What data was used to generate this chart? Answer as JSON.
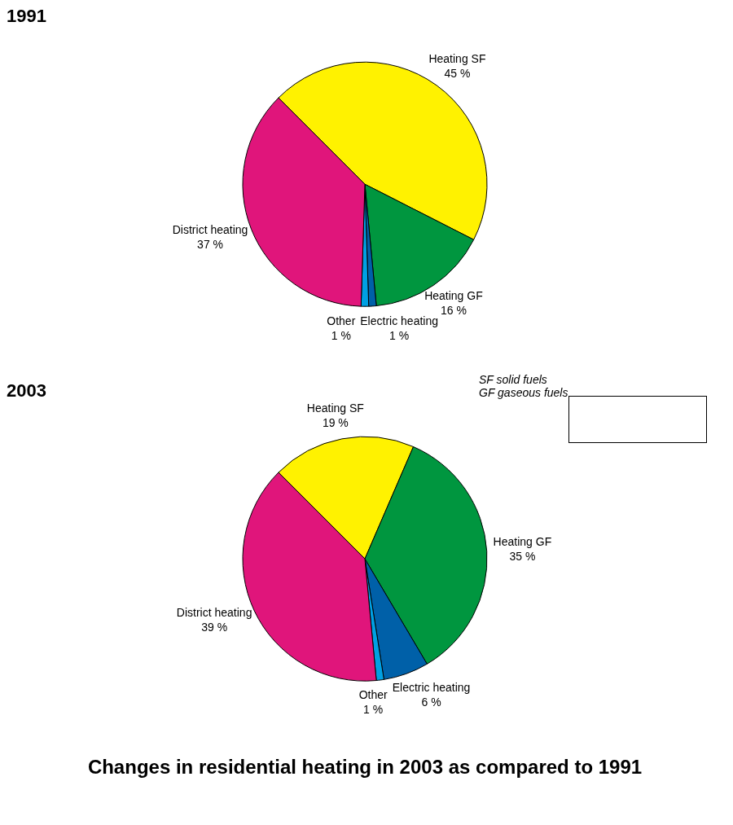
{
  "chart_data": [
    {
      "type": "pie",
      "title": "1991",
      "categories": [
        "Heating SF",
        "Heating GF",
        "Electric heating",
        "Other",
        "District heating"
      ],
      "values": [
        45,
        16,
        1,
        1,
        37
      ],
      "value_labels": [
        "45 %",
        "16 %",
        "1 %",
        "1 %",
        "37 %"
      ],
      "colors": [
        "#fff200",
        "#00963f",
        "#0060a8",
        "#00a0e3",
        "#e0157b"
      ]
    },
    {
      "type": "pie",
      "title": "2003",
      "categories": [
        "Heating SF",
        "Heating GF",
        "Electric heating",
        "Other",
        "District heating"
      ],
      "values": [
        19,
        35,
        6,
        1,
        39
      ],
      "value_labels": [
        "19 %",
        "35 %",
        "6 %",
        "1 %",
        "39 %"
      ],
      "colors": [
        "#fff200",
        "#00963f",
        "#0060a8",
        "#00a0e3",
        "#e0157b"
      ],
      "annotations": [
        "SF  solid fuels",
        "GF  gaseous fuels",
        "Changes in residential heating in 2003 as compared to 1991"
      ]
    }
  ]
}
